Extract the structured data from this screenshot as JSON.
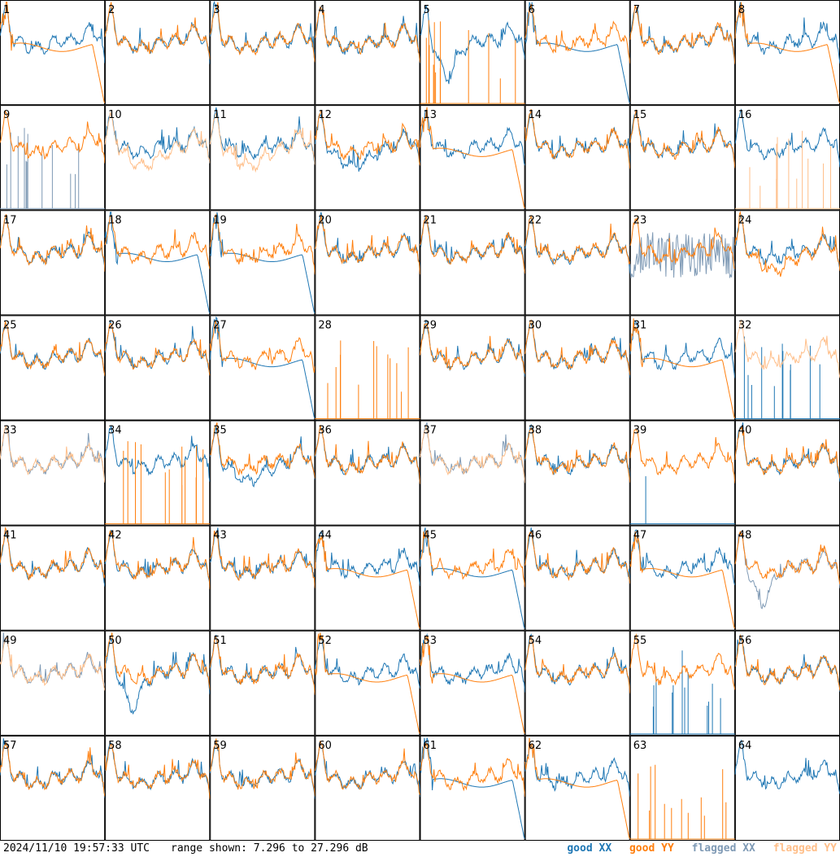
{
  "chart_data": {
    "type": "line",
    "grid": {
      "rows": 8,
      "cols": 8
    },
    "ylim_db": [
      7.296,
      27.296
    ],
    "timestamp": "2024/11/10 19:57:33 UTC",
    "range_text": "range shown: 7.296 to 27.296 dB",
    "legend": [
      {
        "label": "good XX",
        "color": "#1f77b4"
      },
      {
        "label": "good YY",
        "color": "#ff7f0e"
      },
      {
        "label": "flagged XX",
        "color": "#7f9ab5"
      },
      {
        "label": "flagged YY",
        "color": "#ffbf8a"
      }
    ],
    "panels": [
      {
        "label": "1",
        "xx": "normal",
        "yy": "rolloff",
        "flagged": []
      },
      {
        "label": "2",
        "xx": "normal",
        "yy": "normal",
        "flagged": []
      },
      {
        "label": "3",
        "xx": "normal",
        "yy": "normal",
        "flagged": []
      },
      {
        "label": "4",
        "xx": "normal",
        "yy": "normal",
        "flagged": []
      },
      {
        "label": "5",
        "xx": "dip",
        "yy": "spikes",
        "flagged": []
      },
      {
        "label": "6",
        "xx": "rolloff",
        "yy": "normal",
        "flagged": []
      },
      {
        "label": "7",
        "xx": "normal",
        "yy": "normal",
        "flagged": []
      },
      {
        "label": "8",
        "xx": "normal",
        "yy": "rolloff",
        "flagged": []
      },
      {
        "label": "9",
        "xx": "spikes",
        "yy": "normal",
        "flagged": [
          "xx"
        ]
      },
      {
        "label": "10",
        "xx": "normal",
        "yy": "low",
        "flagged": [
          "yy"
        ]
      },
      {
        "label": "11",
        "xx": "normal",
        "yy": "low",
        "flagged": [
          "yy"
        ]
      },
      {
        "label": "12",
        "xx": "low",
        "yy": "normal",
        "flagged": []
      },
      {
        "label": "13",
        "xx": "normal",
        "yy": "rolloff",
        "flagged": []
      },
      {
        "label": "14",
        "xx": "normal",
        "yy": "normal",
        "flagged": []
      },
      {
        "label": "15",
        "xx": "normal",
        "yy": "normal",
        "flagged": []
      },
      {
        "label": "16",
        "xx": "normal",
        "yy": "spikes",
        "flagged": [
          "yy"
        ]
      },
      {
        "label": "17",
        "xx": "normal",
        "yy": "normal",
        "flagged": []
      },
      {
        "label": "18",
        "xx": "rolloff",
        "yy": "normal",
        "flagged": []
      },
      {
        "label": "19",
        "xx": "rolloff",
        "yy": "normal",
        "flagged": []
      },
      {
        "label": "20",
        "xx": "normal",
        "yy": "normal",
        "flagged": []
      },
      {
        "label": "21",
        "xx": "normal",
        "yy": "normal",
        "flagged": []
      },
      {
        "label": "22",
        "xx": "normal",
        "yy": "normal",
        "flagged": []
      },
      {
        "label": "23",
        "xx": "noisy",
        "yy": "normal",
        "flagged": [
          "xx"
        ]
      },
      {
        "label": "24",
        "xx": "normal",
        "yy": "low",
        "flagged": []
      },
      {
        "label": "25",
        "xx": "normal",
        "yy": "normal",
        "flagged": []
      },
      {
        "label": "26",
        "xx": "normal",
        "yy": "normal",
        "flagged": []
      },
      {
        "label": "27",
        "xx": "rolloff",
        "yy": "normal",
        "flagged": []
      },
      {
        "label": "28",
        "xx": "none",
        "yy": "spikes",
        "flagged": []
      },
      {
        "label": "29",
        "xx": "normal",
        "yy": "normal",
        "flagged": []
      },
      {
        "label": "30",
        "xx": "normal",
        "yy": "normal",
        "flagged": []
      },
      {
        "label": "31",
        "xx": "normal",
        "yy": "rolloff",
        "flagged": []
      },
      {
        "label": "32",
        "xx": "spikes",
        "yy": "normal",
        "flagged": [
          "yy"
        ]
      },
      {
        "label": "33",
        "xx": "normal",
        "yy": "normal",
        "flagged": [
          "xx",
          "yy"
        ]
      },
      {
        "label": "34",
        "xx": "normal",
        "yy": "spikes",
        "flagged": []
      },
      {
        "label": "35",
        "xx": "low",
        "yy": "normal",
        "flagged": []
      },
      {
        "label": "36",
        "xx": "normal",
        "yy": "normal",
        "flagged": []
      },
      {
        "label": "37",
        "xx": "normal",
        "yy": "normal",
        "flagged": [
          "xx",
          "yy"
        ]
      },
      {
        "label": "38",
        "xx": "normal",
        "yy": "normal",
        "flagged": []
      },
      {
        "label": "39",
        "xx": "spike",
        "yy": "normal",
        "flagged": []
      },
      {
        "label": "40",
        "xx": "normal",
        "yy": "normal",
        "flagged": []
      },
      {
        "label": "41",
        "xx": "normal",
        "yy": "normal",
        "flagged": []
      },
      {
        "label": "42",
        "xx": "normal",
        "yy": "normal",
        "flagged": []
      },
      {
        "label": "43",
        "xx": "normal",
        "yy": "normal",
        "flagged": []
      },
      {
        "label": "44",
        "xx": "normal",
        "yy": "rolloff",
        "flagged": []
      },
      {
        "label": "45",
        "xx": "rolloff",
        "yy": "normal",
        "flagged": []
      },
      {
        "label": "46",
        "xx": "normal",
        "yy": "normal",
        "flagged": []
      },
      {
        "label": "47",
        "xx": "normal",
        "yy": "rolloff",
        "flagged": []
      },
      {
        "label": "48",
        "xx": "dip",
        "yy": "normal",
        "flagged": [
          "xx"
        ]
      },
      {
        "label": "49",
        "xx": "normal",
        "yy": "normal",
        "flagged": [
          "xx",
          "yy"
        ]
      },
      {
        "label": "50",
        "xx": "dip",
        "yy": "normal",
        "flagged": []
      },
      {
        "label": "51",
        "xx": "normal",
        "yy": "normal",
        "flagged": []
      },
      {
        "label": "52",
        "xx": "normal",
        "yy": "rolloff",
        "flagged": []
      },
      {
        "label": "53",
        "xx": "normal",
        "yy": "rolloff",
        "flagged": []
      },
      {
        "label": "54",
        "xx": "normal",
        "yy": "normal",
        "flagged": []
      },
      {
        "label": "55",
        "xx": "spikes",
        "yy": "normal",
        "flagged": []
      },
      {
        "label": "56",
        "xx": "normal",
        "yy": "normal",
        "flagged": []
      },
      {
        "label": "57",
        "xx": "normal",
        "yy": "normal",
        "flagged": []
      },
      {
        "label": "58",
        "xx": "normal",
        "yy": "normal",
        "flagged": []
      },
      {
        "label": "59",
        "xx": "normal",
        "yy": "normal",
        "flagged": []
      },
      {
        "label": "60",
        "xx": "normal",
        "yy": "normal",
        "flagged": []
      },
      {
        "label": "61",
        "xx": "rolloff",
        "yy": "normal",
        "flagged": []
      },
      {
        "label": "62",
        "xx": "normal",
        "yy": "rolloff",
        "flagged": []
      },
      {
        "label": "63",
        "xx": "none",
        "yy": "spikes",
        "flagged": []
      },
      {
        "label": "64",
        "xx": "normal",
        "yy": "none",
        "flagged": []
      }
    ]
  }
}
